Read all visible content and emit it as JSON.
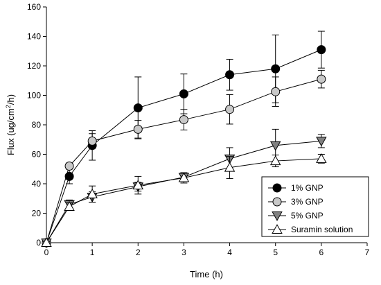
{
  "chart_data": {
    "type": "line",
    "title": "",
    "xlabel": "Time (h)",
    "ylabel": {
      "prefix": "Flux (ug/cm",
      "superscript": "2",
      "suffix": "/h)"
    },
    "xlim": [
      0,
      7
    ],
    "ylim": [
      0,
      160
    ],
    "xticks": [
      0,
      1,
      2,
      3,
      4,
      5,
      6,
      7
    ],
    "yticks": [
      0,
      20,
      40,
      60,
      80,
      100,
      120,
      140,
      160
    ],
    "grid": false,
    "legend_position": "bottom-right",
    "x": [
      0,
      0.5,
      1,
      2,
      3,
      4,
      5,
      6
    ],
    "series": [
      {
        "name": "1% GNP",
        "marker": "circle",
        "fill": "#000000",
        "values": [
          0,
          45,
          66,
          91.5,
          101,
          114,
          118,
          131
        ],
        "errors": [
          0,
          5,
          10,
          21,
          13.5,
          10.5,
          23,
          12.5
        ]
      },
      {
        "name": "3% GNP",
        "marker": "circle",
        "fill": "#c8c8c8",
        "values": [
          0,
          52,
          69,
          77,
          83.5,
          90.5,
          102.5,
          111
        ],
        "errors": [
          0,
          2,
          5,
          6,
          7,
          10,
          10,
          6
        ]
      },
      {
        "name": "5% GNP",
        "marker": "triangle-down",
        "fill": "#808080",
        "values": [
          0,
          26,
          31,
          38,
          44.5,
          57,
          66,
          69
        ],
        "errors": [
          0,
          3,
          3.5,
          3,
          3,
          7.5,
          11,
          4.5
        ]
      },
      {
        "name": "Suramin solution",
        "marker": "triangle-up",
        "fill": "#ffffff",
        "values": [
          0,
          24.5,
          33,
          39,
          44,
          51,
          55.5,
          57
        ],
        "errors": [
          0,
          2.5,
          5.5,
          6,
          3.5,
          7.5,
          4,
          3
        ]
      }
    ]
  }
}
